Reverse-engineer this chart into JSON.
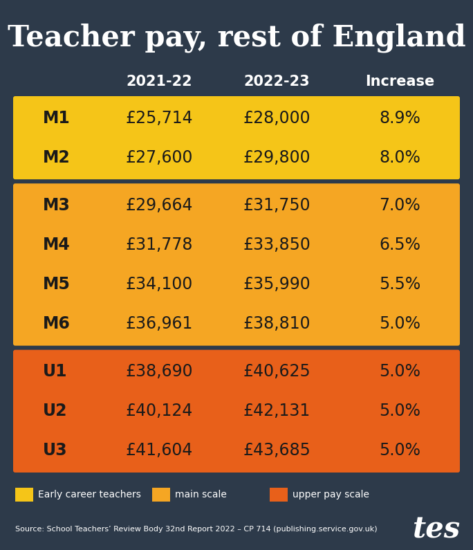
{
  "title": "Teacher pay, rest of England",
  "bg_color": "#2d3a4a",
  "header_cols": [
    "2021-22",
    "2022-23",
    "Increase"
  ],
  "rows": [
    {
      "label": "M1",
      "val1": "£25,714",
      "val2": "£28,000",
      "inc": "8.9%",
      "group": "early"
    },
    {
      "label": "M2",
      "val1": "£27,600",
      "val2": "£29,800",
      "inc": "8.0%",
      "group": "early"
    },
    {
      "label": "M3",
      "val1": "£29,664",
      "val2": "£31,750",
      "inc": "7.0%",
      "group": "main"
    },
    {
      "label": "M4",
      "val1": "£31,778",
      "val2": "£33,850",
      "inc": "6.5%",
      "group": "main"
    },
    {
      "label": "M5",
      "val1": "£34,100",
      "val2": "£35,990",
      "inc": "5.5%",
      "group": "main"
    },
    {
      "label": "M6",
      "val1": "£36,961",
      "val2": "£38,810",
      "inc": "5.0%",
      "group": "main"
    },
    {
      "label": "U1",
      "val1": "£38,690",
      "val2": "£40,625",
      "inc": "5.0%",
      "group": "upper"
    },
    {
      "label": "U2",
      "val1": "£40,124",
      "val2": "£42,131",
      "inc": "5.0%",
      "group": "upper"
    },
    {
      "label": "U3",
      "val1": "£41,604",
      "val2": "£43,685",
      "inc": "5.0%",
      "group": "upper"
    }
  ],
  "group_colors": {
    "early": "#f5c518",
    "main": "#f5a623",
    "upper": "#e8601a"
  },
  "legend": [
    {
      "label": "Early career teachers",
      "color": "#f5c518"
    },
    {
      "label": "main scale",
      "color": "#f5a623"
    },
    {
      "label": "upper pay scale",
      "color": "#e8601a"
    }
  ],
  "source": "Source: School Teachers’ Review Body 32nd Report 2022 – CP 714 (publishing.service.gov.uk)",
  "tes_logo": "tes",
  "text_color_dark": "#1a1a1a",
  "text_color_light": "#ffffff"
}
